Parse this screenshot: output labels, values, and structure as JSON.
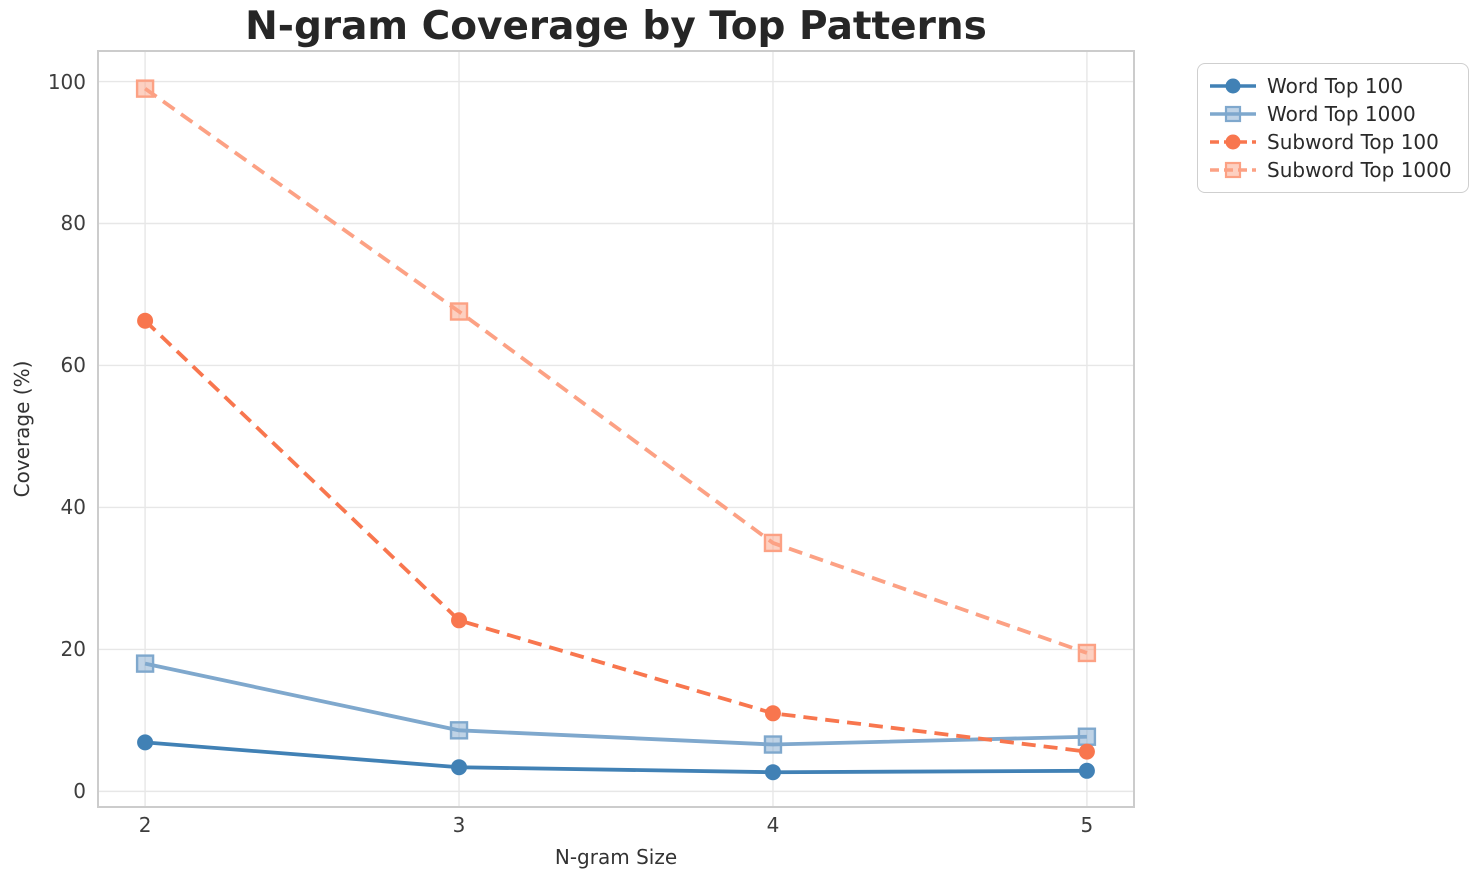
{
  "title": "N-gram Coverage by Top Patterns",
  "axes": {
    "x_label": "N-gram Size",
    "y_label": "Coverage (%)",
    "x_ticks": [
      "2",
      "3",
      "4",
      "5"
    ],
    "y_ticks": [
      "0",
      "20",
      "40",
      "60",
      "80",
      "100"
    ]
  },
  "legend": {
    "position": "outside-upper-right",
    "items": [
      "Word Top 100",
      "Word Top 1000",
      "Subword Top 100",
      "Subword Top 1000"
    ]
  },
  "chart_data": {
    "type": "line",
    "title": "N-gram Coverage by Top Patterns",
    "xlabel": "N-gram Size",
    "ylabel": "Coverage (%)",
    "x": [
      2,
      3,
      4,
      5
    ],
    "xlim": [
      1.85,
      5.15
    ],
    "ylim": [
      -2.2,
      104.3
    ],
    "grid": true,
    "legend_position": "outside upper right",
    "series": [
      {
        "name": "Word Top 100",
        "values": [
          6.9,
          3.4,
          2.7,
          2.9
        ],
        "color": "#4181b5",
        "line_style": "solid",
        "marker": "circle"
      },
      {
        "name": "Word Top 1000",
        "values": [
          18.0,
          8.6,
          6.6,
          7.7
        ],
        "color": "#7fa8cd",
        "line_style": "solid",
        "marker": "square"
      },
      {
        "name": "Subword Top 100",
        "values": [
          66.3,
          24.1,
          11.0,
          5.6
        ],
        "color": "#f8764e",
        "line_style": "dashed",
        "marker": "circle"
      },
      {
        "name": "Subword Top 1000",
        "values": [
          99.0,
          67.6,
          35.0,
          19.5
        ],
        "color": "#fca184",
        "line_style": "dashed",
        "marker": "square"
      }
    ]
  },
  "style": {
    "background": "#ffffff",
    "grid_color": "#e7e7e7",
    "plot_border_color": "#cccccc",
    "title_color": "#262626",
    "tick_color": "#3d3d3d",
    "axis_label_color": "#333333",
    "legend_text_color": "#2a2a2a",
    "legend_border_color": "#cfcfcf"
  }
}
